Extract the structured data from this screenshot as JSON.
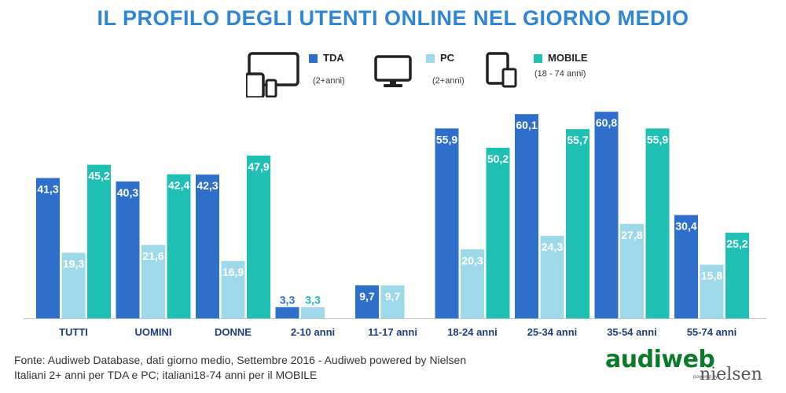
{
  "title": "IL PROFILO DEGLI UTENTI ONLINE NEL GIORNO MEDIO",
  "legend": [
    {
      "key": "tda",
      "label": "TDA",
      "sub": "(2+anni)",
      "color": "#2e6fcb",
      "icon": "multi-device-icon"
    },
    {
      "key": "pc",
      "label": "PC",
      "sub": "(2+anni)",
      "color": "#9ed9ea",
      "icon": "monitor-icon"
    },
    {
      "key": "mobile",
      "label": "MOBILE",
      "sub": "(18 - 74 anni)",
      "color": "#1fc0b3",
      "icon": "tablet-phone-icon"
    }
  ],
  "chart_data": {
    "type": "bar",
    "categories": [
      "TUTTI",
      "UOMINI",
      "DONNE",
      "2-10 anni",
      "11-17 anni",
      "18-24 anni",
      "25-34 anni",
      "35-54 anni",
      "55-74 anni"
    ],
    "series": [
      {
        "name": "TDA",
        "color": "#2e6fcb",
        "values": [
          41.3,
          40.3,
          42.3,
          3.3,
          9.7,
          55.9,
          60.1,
          60.8,
          30.4
        ]
      },
      {
        "name": "PC",
        "color": "#9ed9ea",
        "values": [
          19.3,
          21.6,
          16.9,
          3.3,
          9.7,
          20.3,
          24.3,
          27.8,
          15.8
        ]
      },
      {
        "name": "MOBILE",
        "color": "#1fc0b3",
        "values": [
          45.2,
          42.4,
          47.9,
          null,
          null,
          50.2,
          55.7,
          55.9,
          25.2
        ]
      }
    ],
    "value_labels": [
      [
        "41,3",
        "40,3",
        "42,3",
        "3,3",
        "9,7",
        "55,9",
        "60,1",
        "60,8",
        "30,4"
      ],
      [
        "19,3",
        "21,6",
        "16,9",
        "3,3",
        "9,7",
        "20,3",
        "24,3",
        "27,8",
        "15,8"
      ],
      [
        "45,2",
        "42,4",
        "47,9",
        "",
        "",
        "50,2",
        "55,7",
        "55,9",
        "25,2"
      ]
    ],
    "ylim": [
      0,
      62
    ],
    "grid": false
  },
  "source": {
    "line1": "Fonte: Audiweb Database, dati giorno medio, Settembre 2016 - Audiweb powered by Nielsen",
    "line2": "Italiani 2+ anni per TDA e PC; italiani18-74 anni per il MOBILE"
  },
  "logo": {
    "main": "audiweb",
    "powered": "powered by",
    "partner": "nielsen"
  }
}
